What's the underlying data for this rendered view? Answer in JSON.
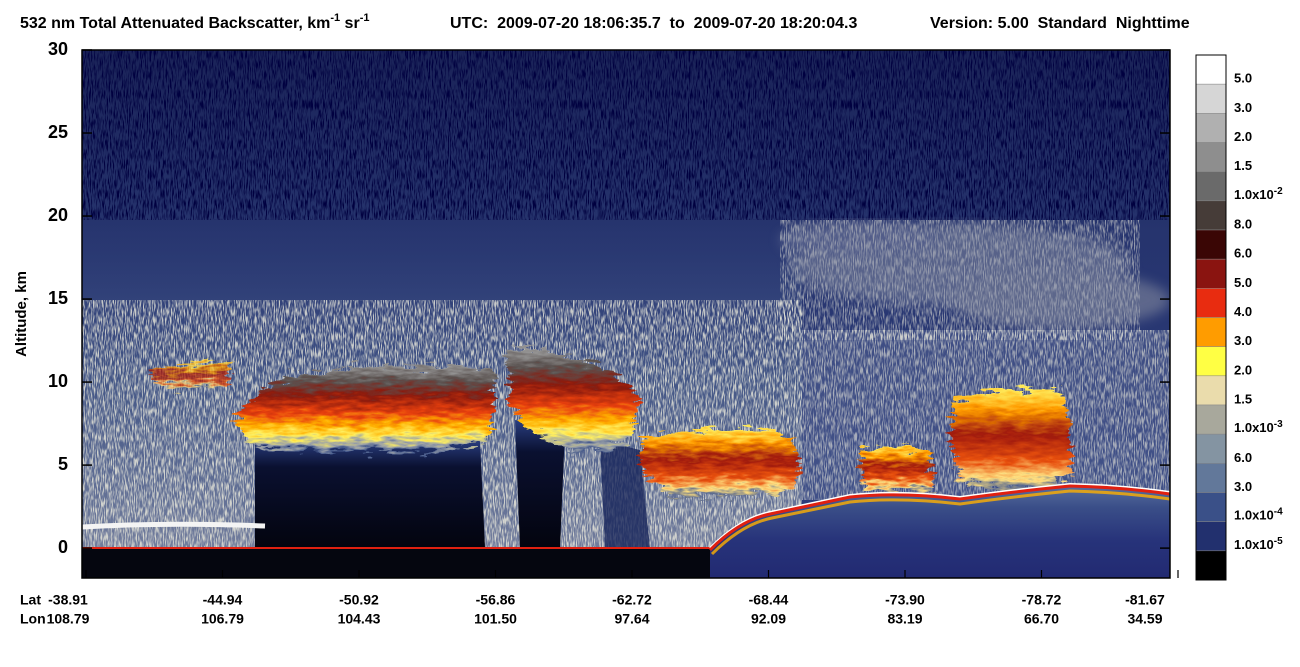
{
  "chart_data": {
    "type": "curtain",
    "title": {
      "parts": [
        "532 nm Total Attenuated Backscatter, km",
        "-1",
        " sr",
        "-1"
      ],
      "utc": "UTC:  2009-07-20 18:06:35.7  to  2009-07-20 18:20:04.3",
      "version": "Version: 5.00  Standard  Nighttime"
    },
    "ylabel": "Altitude, km",
    "ylim": [
      -1.8,
      30
    ],
    "yticks": [
      0,
      5,
      10,
      15,
      20,
      25,
      30
    ],
    "x_rows": [
      {
        "name": "Lat",
        "labels": [
          "-38.91",
          "-44.94",
          "-50.92",
          "-56.86",
          "-62.72",
          "-68.44",
          "-73.90",
          "-78.72",
          "-81.67"
        ]
      },
      {
        "name": "Lon",
        "labels": [
          "108.79",
          "106.79",
          "104.43",
          "101.50",
          "97.64",
          "92.09",
          "83.19",
          "66.70",
          "34.59"
        ]
      }
    ],
    "colorbar": {
      "colors": [
        "#ffffff",
        "#d6d6d6",
        "#b0b0b0",
        "#8e8e8e",
        "#6a6a6a",
        "#463c38",
        "#3a0605",
        "#8a1410",
        "#e82c10",
        "#ff9c00",
        "#ffff44",
        "#eadcac",
        "#a8a89c",
        "#8494a2",
        "#62789a",
        "#3a5088",
        "#22306e",
        "#000000"
      ],
      "labels": [
        "5.0",
        "3.0",
        "2.0",
        "1.5",
        {
          "text": "1.0x10",
          "exp": "-2"
        },
        "8.0",
        "6.0",
        "5.0",
        "4.0",
        "3.0",
        "2.0",
        "1.5",
        {
          "text": "1.0x10",
          "exp": "-3"
        },
        "6.0",
        "3.0",
        {
          "text": "1.0x10",
          "exp": "-4"
        },
        {
          "text": "1.0x10",
          "exp": "-5"
        }
      ]
    }
  }
}
